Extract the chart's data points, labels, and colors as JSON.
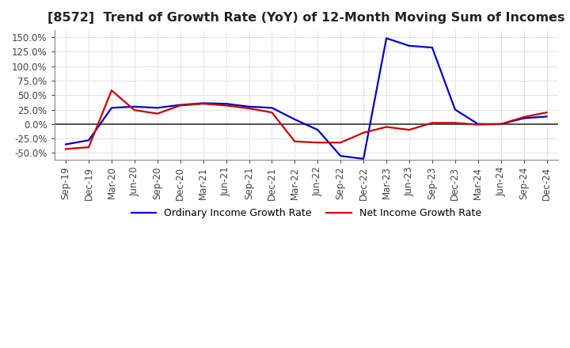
{
  "title": "[8572]  Trend of Growth Rate (YoY) of 12-Month Moving Sum of Incomes",
  "title_fontsize": 11.5,
  "ylim": [
    -62,
    162
  ],
  "yticks": [
    -50,
    -25,
    0,
    25,
    50,
    75,
    100,
    125,
    150
  ],
  "background_color": "#ffffff",
  "grid_color": "#aaaaaa",
  "ordinary_color": "#0000cc",
  "net_color": "#cc0000",
  "legend_labels": [
    "Ordinary Income Growth Rate",
    "Net Income Growth Rate"
  ],
  "x_labels": [
    "Sep-19",
    "Dec-19",
    "Mar-20",
    "Jun-20",
    "Sep-20",
    "Dec-20",
    "Mar-21",
    "Jun-21",
    "Sep-21",
    "Dec-21",
    "Mar-22",
    "Jun-22",
    "Sep-22",
    "Dec-22",
    "Mar-23",
    "Jun-23",
    "Sep-23",
    "Dec-23",
    "Mar-24",
    "Jun-24",
    "Sep-24",
    "Dec-24"
  ],
  "ordinary_income": [
    -35,
    -28,
    28,
    30,
    28,
    33,
    36,
    35,
    30,
    28,
    8,
    -10,
    -55,
    -60,
    148,
    135,
    132,
    25,
    0,
    0,
    10,
    13
  ],
  "net_income": [
    -43,
    -40,
    58,
    24,
    18,
    32,
    35,
    32,
    27,
    20,
    -30,
    -32,
    -32,
    -15,
    -5,
    -10,
    2,
    2,
    -1,
    0,
    12,
    20
  ]
}
